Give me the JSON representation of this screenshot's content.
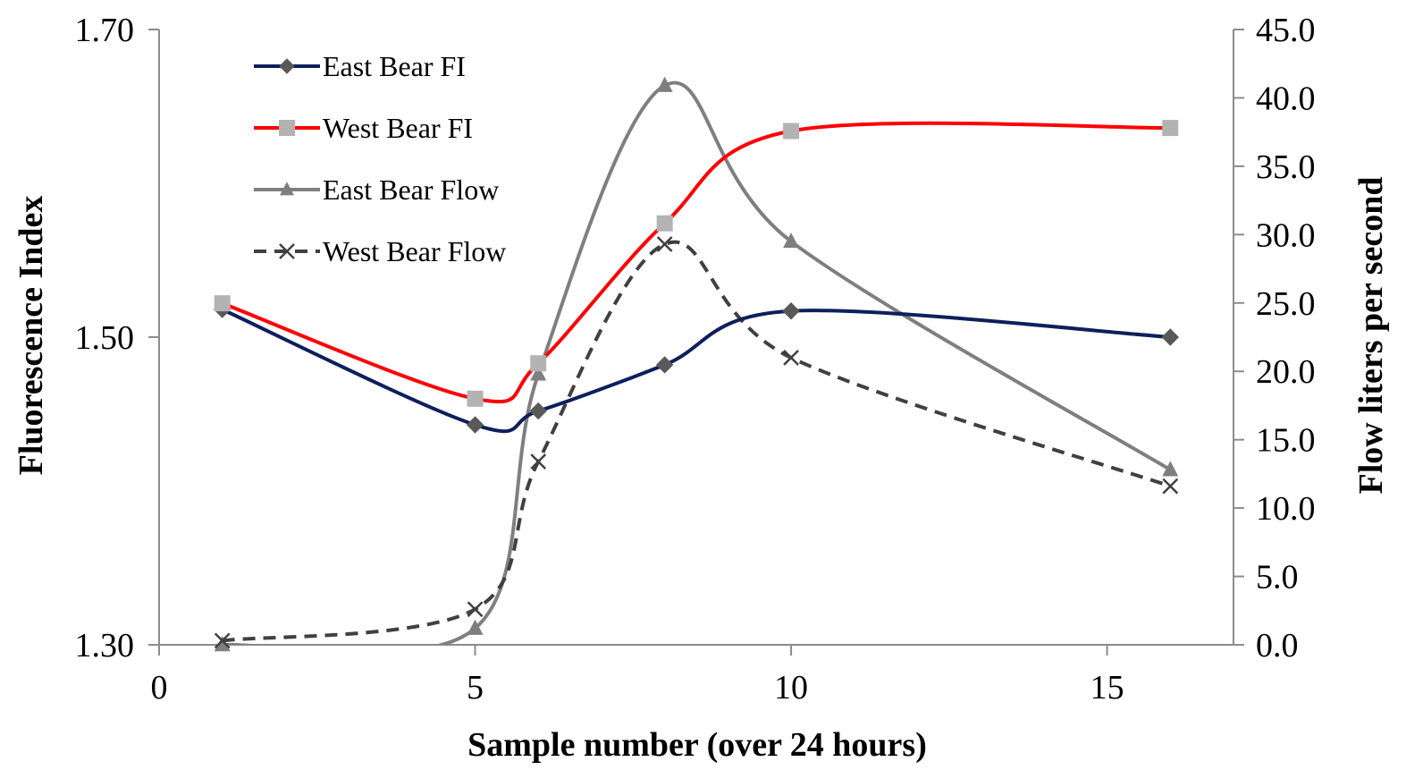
{
  "chart_data": {
    "type": "line",
    "xlabel": "Sample number (over 24 hours)",
    "ylabel": "Fluorescence Index",
    "y2label": "Flow liters per second",
    "xlim": [
      0,
      17
    ],
    "ylim": [
      1.3,
      1.7
    ],
    "y2lim": [
      0,
      45
    ],
    "x_ticks": [
      0,
      5,
      10,
      15
    ],
    "y_ticks": [
      1.3,
      1.5,
      1.7
    ],
    "y_tick_labels": [
      "1.30",
      "1.50",
      "1.70"
    ],
    "y2_ticks": [
      0,
      5,
      10,
      15,
      20,
      25,
      30,
      35,
      40,
      45
    ],
    "y2_tick_labels": [
      "0.0",
      "5.0",
      "10.0",
      "15.0",
      "20.0",
      "25.0",
      "30.0",
      "35.0",
      "40.0",
      "45.0"
    ],
    "grid": false,
    "legend_position": "top-left",
    "series": [
      {
        "name": "East Bear FI",
        "axis": "left",
        "x": [
          1,
          5,
          6,
          8,
          10,
          16
        ],
        "values": [
          1.518,
          1.443,
          1.452,
          1.482,
          1.517,
          1.5
        ],
        "color": "#0D1F5C",
        "marker": "diamond",
        "marker_color": "#595959",
        "dashed": false
      },
      {
        "name": "West Bear FI",
        "axis": "left",
        "x": [
          1,
          5,
          6,
          8,
          10,
          16
        ],
        "values": [
          1.522,
          1.46,
          1.483,
          1.574,
          1.634,
          1.636
        ],
        "color": "#FF0000",
        "marker": "square",
        "marker_color": "#B3B3B3",
        "dashed": false
      },
      {
        "name": "East Bear Flow",
        "axis": "right",
        "x": [
          1,
          5,
          6,
          8,
          10,
          16
        ],
        "values": [
          0.0,
          1.2,
          19.8,
          40.9,
          29.5,
          12.8
        ],
        "color": "#7F7F7F",
        "marker": "triangle",
        "marker_color": "#7F7F7F",
        "dashed": false
      },
      {
        "name": "West Bear Flow",
        "axis": "right",
        "x": [
          1,
          5,
          6,
          8,
          10,
          16
        ],
        "values": [
          0.3,
          2.6,
          13.4,
          29.3,
          21.0,
          11.6
        ],
        "color": "#404040",
        "marker": "x",
        "marker_color": "#404040",
        "dashed": true
      }
    ]
  }
}
